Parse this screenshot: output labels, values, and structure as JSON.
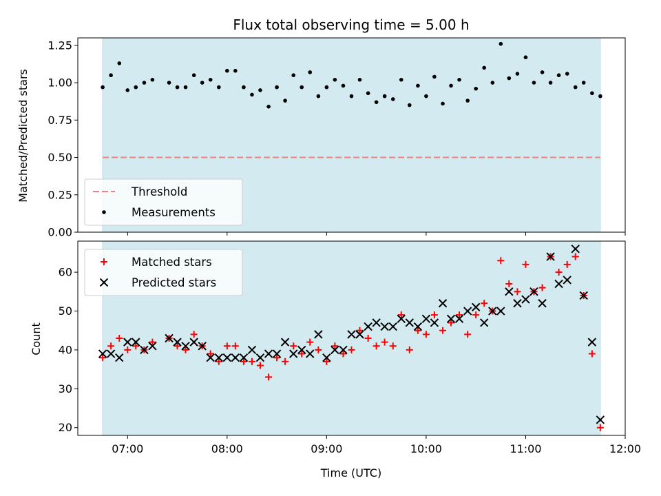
{
  "chart_data": [
    {
      "type": "scatter",
      "title": "Flux total observing time = 5.00 h",
      "xlabel": "",
      "ylabel": "Matched/Predicted stars",
      "xlim": [
        6.5,
        12.0
      ],
      "ylim": [
        0.0,
        1.3
      ],
      "yticks": [
        "0.00",
        "0.25",
        "0.50",
        "0.75",
        "1.00",
        "1.25"
      ],
      "ytick_values": [
        0.0,
        0.25,
        0.5,
        0.75,
        1.0,
        1.25
      ],
      "observing_window": [
        6.75,
        11.75
      ],
      "window_color": "#d3eaf1",
      "threshold": 0.5,
      "threshold_color": "#f08080",
      "legend_position": "lower-left",
      "legend": [
        "Threshold",
        "Measurements"
      ],
      "series": [
        {
          "name": "Measurements",
          "marker": "dot",
          "color": "#000000",
          "x": [
            6.75,
            6.833,
            6.917,
            7.0,
            7.083,
            7.167,
            7.25,
            7.417,
            7.5,
            7.583,
            7.667,
            7.75,
            7.833,
            7.917,
            8.0,
            8.083,
            8.167,
            8.25,
            8.333,
            8.417,
            8.5,
            8.583,
            8.667,
            8.75,
            8.833,
            8.917,
            9.0,
            9.083,
            9.167,
            9.25,
            9.333,
            9.417,
            9.5,
            9.583,
            9.667,
            9.75,
            9.833,
            9.917,
            10.0,
            10.083,
            10.167,
            10.25,
            10.333,
            10.417,
            10.5,
            10.583,
            10.667,
            10.75,
            10.833,
            10.917,
            11.0,
            11.083,
            11.167,
            11.25,
            11.333,
            11.417,
            11.5,
            11.583,
            11.667,
            11.75
          ],
          "y": [
            0.97,
            1.05,
            1.13,
            0.95,
            0.97,
            1.0,
            1.02,
            1.0,
            0.97,
            0.97,
            1.05,
            1.0,
            1.02,
            0.97,
            1.08,
            1.08,
            0.97,
            0.92,
            0.95,
            0.84,
            0.97,
            0.88,
            1.05,
            0.97,
            1.07,
            0.91,
            0.97,
            1.02,
            0.98,
            0.91,
            1.02,
            0.93,
            0.87,
            0.91,
            0.89,
            1.02,
            0.85,
            0.98,
            0.91,
            1.04,
            0.86,
            0.98,
            1.02,
            0.88,
            0.96,
            1.1,
            1.0,
            1.26,
            1.03,
            1.06,
            1.17,
            1.0,
            1.07,
            1.0,
            1.05,
            1.06,
            0.97,
            1.0,
            0.93,
            0.91
          ]
        }
      ]
    },
    {
      "type": "scatter",
      "title": "",
      "xlabel": "Time (UTC)",
      "ylabel": "Count",
      "xlim": [
        6.5,
        12.0
      ],
      "ylim": [
        18,
        68
      ],
      "xticks": [
        "07:00",
        "08:00",
        "09:00",
        "10:00",
        "11:00",
        "12:00"
      ],
      "xtick_values": [
        7,
        8,
        9,
        10,
        11,
        12
      ],
      "yticks": [
        "20",
        "30",
        "40",
        "50",
        "60"
      ],
      "ytick_values": [
        20,
        30,
        40,
        50,
        60
      ],
      "observing_window": [
        6.75,
        11.75
      ],
      "window_color": "#d3eaf1",
      "legend_position": "upper-left",
      "legend": [
        "Matched stars",
        "Predicted stars"
      ],
      "series": [
        {
          "name": "Matched stars",
          "marker": "plus",
          "color": "#ff0000",
          "x": [
            6.75,
            6.833,
            6.917,
            7.0,
            7.083,
            7.167,
            7.25,
            7.417,
            7.5,
            7.583,
            7.667,
            7.75,
            7.833,
            7.917,
            8.0,
            8.083,
            8.167,
            8.25,
            8.333,
            8.417,
            8.5,
            8.583,
            8.667,
            8.75,
            8.833,
            8.917,
            9.0,
            9.083,
            9.167,
            9.25,
            9.333,
            9.417,
            9.5,
            9.583,
            9.667,
            9.75,
            9.833,
            9.917,
            10.0,
            10.083,
            10.167,
            10.25,
            10.333,
            10.417,
            10.5,
            10.583,
            10.667,
            10.75,
            10.833,
            10.917,
            11.0,
            11.083,
            11.167,
            11.25,
            11.333,
            11.417,
            11.5,
            11.583,
            11.667,
            11.75
          ],
          "y": [
            38,
            41,
            43,
            40,
            41,
            40,
            42,
            43,
            41,
            40,
            44,
            41,
            39,
            37,
            41,
            41,
            37,
            37,
            36,
            33,
            38,
            37,
            41,
            39,
            42,
            40,
            37,
            41,
            39,
            40,
            45,
            43,
            41,
            42,
            41,
            49,
            40,
            45,
            44,
            49,
            45,
            47,
            49,
            44,
            49,
            52,
            50,
            63,
            57,
            55,
            62,
            55,
            56,
            64,
            60,
            62,
            64,
            54,
            39,
            20
          ]
        },
        {
          "name": "Predicted stars",
          "marker": "x",
          "color": "#000000",
          "x": [
            6.75,
            6.833,
            6.917,
            7.0,
            7.083,
            7.167,
            7.25,
            7.417,
            7.5,
            7.583,
            7.667,
            7.75,
            7.833,
            7.917,
            8.0,
            8.083,
            8.167,
            8.25,
            8.333,
            8.417,
            8.5,
            8.583,
            8.667,
            8.75,
            8.833,
            8.917,
            9.0,
            9.083,
            9.167,
            9.25,
            9.333,
            9.417,
            9.5,
            9.583,
            9.667,
            9.75,
            9.833,
            9.917,
            10.0,
            10.083,
            10.167,
            10.25,
            10.333,
            10.417,
            10.5,
            10.583,
            10.667,
            10.75,
            10.833,
            10.917,
            11.0,
            11.083,
            11.167,
            11.25,
            11.333,
            11.417,
            11.5,
            11.583,
            11.667,
            11.75
          ],
          "y": [
            39,
            39,
            38,
            42,
            42,
            40,
            41,
            43,
            42,
            41,
            42,
            41,
            38,
            38,
            38,
            38,
            38,
            40,
            38,
            39,
            39,
            42,
            39,
            40,
            39,
            44,
            38,
            40,
            40,
            44,
            44,
            46,
            47,
            46,
            46,
            48,
            47,
            46,
            48,
            47,
            52,
            48,
            48,
            50,
            51,
            47,
            50,
            50,
            55,
            52,
            53,
            55,
            52,
            64,
            57,
            58,
            66,
            54,
            42,
            22
          ]
        }
      ]
    }
  ]
}
